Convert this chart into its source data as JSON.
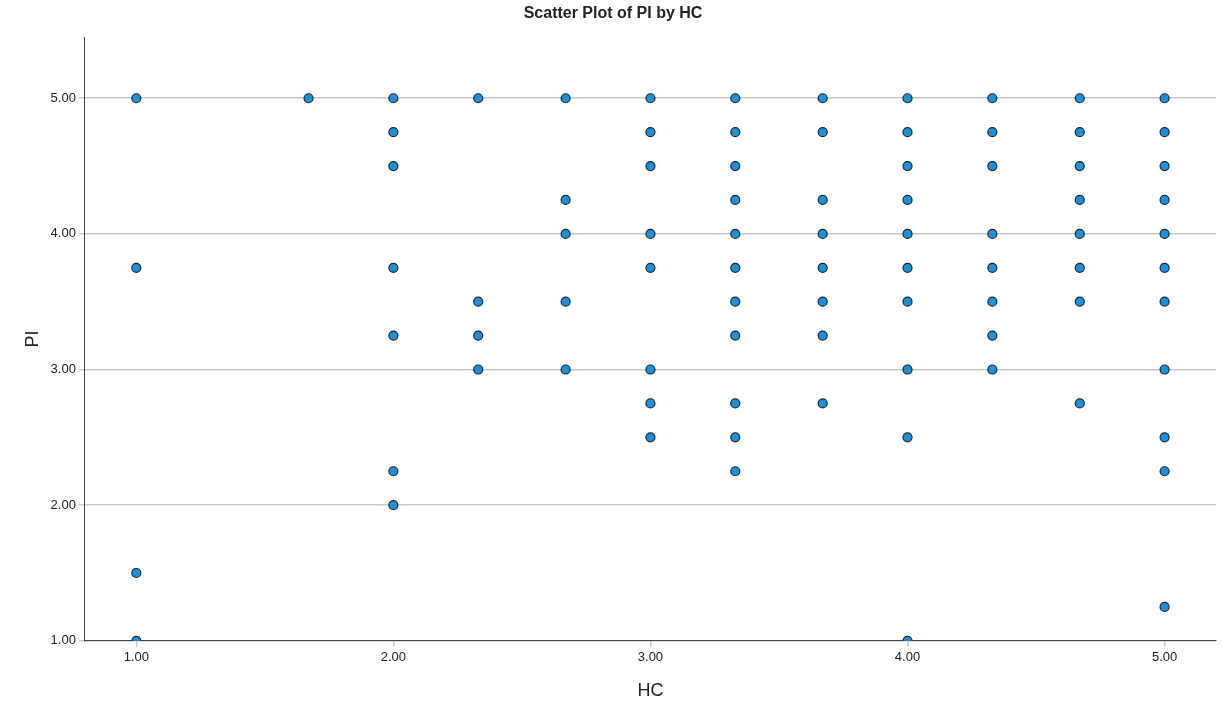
{
  "chart_data": {
    "type": "scatter",
    "title": "Scatter Plot of PI by HC",
    "xlabel": "HC",
    "ylabel": "PI",
    "series": [
      {
        "color": "#1e90d8",
        "x": [
          1,
          1,
          1,
          1,
          1.67,
          2,
          2,
          2,
          2,
          2,
          2,
          2,
          2.33,
          2.33,
          2.33,
          2.33,
          2.67,
          2.67,
          2.67,
          2.67,
          2.67,
          3,
          3,
          3,
          3,
          3,
          3,
          3,
          3,
          3.33,
          3.33,
          3.33,
          3.33,
          3.33,
          3.33,
          3.33,
          3.33,
          3.33,
          3.33,
          3.33,
          3.67,
          3.67,
          3.67,
          3.67,
          3.67,
          3.67,
          3.67,
          3.67,
          4,
          4,
          4,
          4,
          4,
          4,
          4,
          4,
          4,
          4,
          4.33,
          4.33,
          4.33,
          4.33,
          4.33,
          4.33,
          4.33,
          4.33,
          4.67,
          4.67,
          4.67,
          4.67,
          4.67,
          4.67,
          4.67,
          4.67,
          5,
          5,
          5,
          5,
          5,
          5,
          5,
          5,
          5,
          5,
          5
        ],
        "values": [
          5,
          3.75,
          1.5,
          1,
          5,
          5,
          4.75,
          4.5,
          3.75,
          3.25,
          2.25,
          2,
          5,
          3.5,
          3.25,
          3,
          5,
          4.25,
          4,
          3.5,
          3,
          5,
          4.75,
          4.5,
          4,
          3.75,
          3,
          2.75,
          2.5,
          5,
          4.75,
          4.5,
          4.25,
          4,
          3.75,
          3.5,
          3.25,
          2.75,
          2.5,
          2.25,
          5,
          4.75,
          4.25,
          4,
          3.75,
          3.5,
          3.25,
          2.75,
          5,
          4.75,
          4.5,
          4.25,
          4,
          3.75,
          3.5,
          3,
          2.5,
          1,
          5,
          4.75,
          4.5,
          4,
          3.75,
          3.5,
          3.25,
          3,
          5,
          4.75,
          4.5,
          4.25,
          4,
          3.75,
          3.5,
          2.75,
          5,
          4.75,
          4.5,
          4.25,
          4,
          3.75,
          3.5,
          3,
          2.5,
          2.25,
          1.25
        ]
      }
    ],
    "xlim": [
      0.8,
      5.2
    ],
    "xticks": [
      {
        "value": 1,
        "label": "1.00"
      },
      {
        "value": 2,
        "label": "2.00"
      },
      {
        "value": 3,
        "label": "3.00"
      },
      {
        "value": 4,
        "label": "4.00"
      },
      {
        "value": 5,
        "label": "5.00"
      }
    ],
    "ylim": [
      1,
      5.45
    ],
    "yticks": [
      {
        "value": 1,
        "label": "1.00"
      },
      {
        "value": 2,
        "label": "2.00"
      },
      {
        "value": 3,
        "label": "3.00"
      },
      {
        "value": 4,
        "label": "4.00"
      },
      {
        "value": 5,
        "label": "5.00"
      }
    ],
    "grid": "y",
    "marker": "circle"
  }
}
